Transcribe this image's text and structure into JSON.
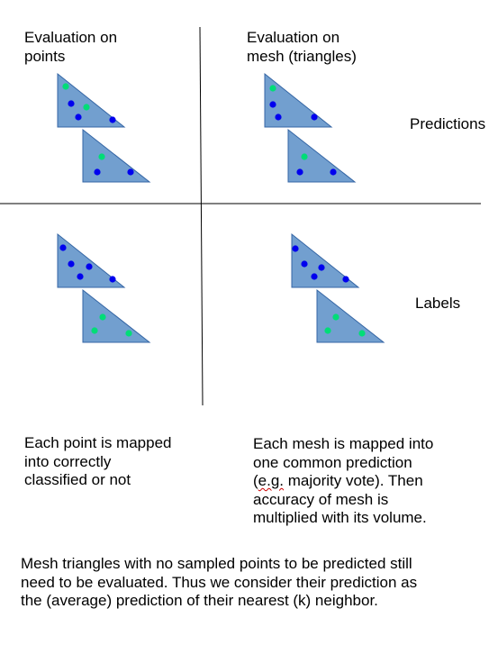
{
  "headers": {
    "points": "Evaluation on\npoints",
    "mesh": "Evaluation on\nmesh (triangles)"
  },
  "row_labels": {
    "predictions": "Predictions",
    "labels": "Labels"
  },
  "notes": {
    "points": "Each point is mapped\ninto correctly\nclassified or not",
    "mesh_line1": "Each mesh is mapped into\none common prediction\n(",
    "mesh_eg": "e.g.",
    "mesh_line2": " majority vote). Then\naccuracy of mesh is\nmultiplied with its volume.",
    "bottom": "Mesh triangles with no sampled points to be predicted still\nneed to be evaluated. Thus we consider their prediction as\nthe (average) prediction of their nearest (k) neighbor."
  },
  "colors": {
    "triangle_fill": "#729fcf",
    "triangle_stroke": "#3465a4",
    "point_blue": "#0000ee",
    "point_green": "#00dd77",
    "divider": "#000000"
  }
}
